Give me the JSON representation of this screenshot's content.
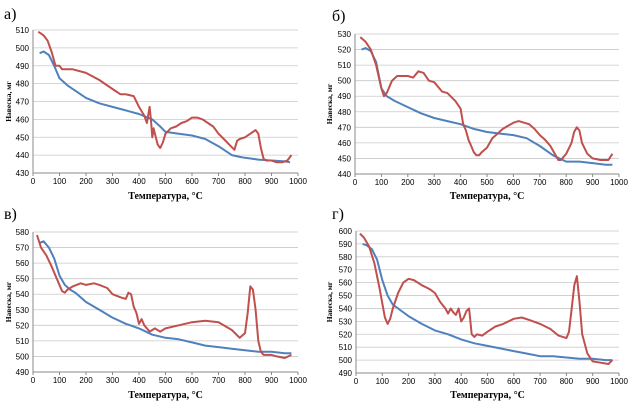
{
  "chart_data": [
    {
      "type": "line",
      "panel_label": "а)",
      "xlabel": "Температура, °С",
      "ylabel": "Навеска, мг",
      "xlim": [
        0,
        1000
      ],
      "ylim": [
        430,
        510
      ],
      "xticks": [
        0,
        100,
        200,
        300,
        400,
        500,
        600,
        700,
        800,
        900,
        1000
      ],
      "yticks": [
        430,
        440,
        450,
        460,
        470,
        480,
        490,
        500,
        510
      ],
      "grid": true,
      "series": [
        {
          "color": "#4f81bd",
          "x": [
            25,
            40,
            60,
            80,
            100,
            130,
            160,
            200,
            250,
            300,
            350,
            400,
            450,
            480,
            500,
            550,
            600,
            650,
            700,
            750,
            780,
            800,
            850,
            900,
            950,
            970
          ],
          "y": [
            497,
            498,
            496,
            490,
            483,
            479,
            476,
            472,
            469,
            467,
            465,
            463,
            460,
            456,
            453,
            452,
            451,
            449,
            445,
            440,
            439,
            438.5,
            437.5,
            437,
            436.5,
            436
          ]
        },
        {
          "color": "#c0504d",
          "x": [
            20,
            30,
            40,
            55,
            70,
            85,
            100,
            110,
            130,
            150,
            200,
            250,
            300,
            330,
            350,
            380,
            400,
            420,
            430,
            440,
            445,
            450,
            455,
            460,
            470,
            480,
            490,
            500,
            520,
            540,
            560,
            580,
            600,
            620,
            640,
            660,
            680,
            700,
            720,
            740,
            760,
            770,
            780,
            800,
            820,
            840,
            850,
            860,
            870,
            880,
            900,
            920,
            940,
            960,
            975
          ],
          "y": [
            509,
            508,
            507,
            504,
            498,
            490,
            490,
            488,
            488,
            488,
            486,
            482,
            477,
            474,
            474,
            473,
            467,
            462,
            458,
            467,
            460,
            450,
            455,
            452,
            446,
            444,
            447,
            452,
            455,
            456,
            458,
            459,
            461,
            461,
            460,
            458,
            456,
            452,
            449,
            446,
            443,
            448,
            449,
            450,
            452,
            454,
            452,
            444,
            438,
            437,
            437,
            436,
            436,
            437,
            440
          ]
        }
      ]
    },
    {
      "type": "line",
      "panel_label": "б)",
      "xlabel": "Температура, °С",
      "ylabel": "Навеска, мг",
      "xlim": [
        0,
        1000
      ],
      "ylim": [
        440,
        530
      ],
      "xticks": [
        0,
        100,
        200,
        300,
        400,
        500,
        600,
        700,
        800,
        900,
        1000
      ],
      "yticks": [
        440,
        450,
        460,
        470,
        480,
        490,
        500,
        510,
        520,
        530
      ],
      "grid": true,
      "series": [
        {
          "color": "#4f81bd",
          "x": [
            25,
            40,
            60,
            80,
            100,
            120,
            150,
            200,
            250,
            300,
            350,
            400,
            450,
            500,
            550,
            600,
            650,
            700,
            750,
            800,
            850,
            900,
            950,
            975
          ],
          "y": [
            520,
            521,
            519,
            512,
            495,
            490,
            487,
            483,
            479,
            476,
            474,
            472,
            469,
            467,
            466,
            465,
            463,
            458,
            452,
            448,
            448,
            447,
            446,
            446
          ]
        },
        {
          "color": "#c0504d",
          "x": [
            20,
            40,
            60,
            80,
            100,
            110,
            120,
            140,
            160,
            200,
            220,
            240,
            260,
            280,
            300,
            330,
            350,
            380,
            400,
            410,
            420,
            430,
            440,
            450,
            460,
            470,
            480,
            500,
            520,
            540,
            560,
            580,
            600,
            620,
            640,
            660,
            680,
            700,
            720,
            740,
            760,
            770,
            780,
            800,
            820,
            830,
            840,
            850,
            860,
            880,
            900,
            930,
            960,
            975
          ],
          "y": [
            528,
            525,
            520,
            510,
            495,
            490,
            492,
            500,
            503,
            503,
            502,
            506,
            505,
            500,
            499,
            493,
            492,
            487,
            482,
            472,
            468,
            462,
            458,
            454,
            452,
            452,
            454,
            457,
            463,
            466,
            469,
            471,
            473,
            474,
            473,
            472,
            469,
            465,
            462,
            458,
            452,
            449,
            449,
            453,
            460,
            467,
            470,
            468,
            460,
            453,
            450,
            449,
            449,
            453
          ]
        }
      ]
    },
    {
      "type": "line",
      "panel_label": "в)",
      "xlabel": "Температура, °С",
      "ylabel": "Навеска, мг",
      "xlim": [
        0,
        1000
      ],
      "ylim": [
        490,
        580
      ],
      "xticks": [
        0,
        100,
        200,
        300,
        400,
        500,
        600,
        700,
        800,
        900,
        1000
      ],
      "yticks": [
        490,
        500,
        510,
        520,
        530,
        540,
        550,
        560,
        570,
        580
      ],
      "grid": true,
      "series": [
        {
          "color": "#4f81bd",
          "x": [
            25,
            40,
            60,
            80,
            100,
            120,
            140,
            160,
            200,
            250,
            300,
            350,
            400,
            450,
            500,
            550,
            600,
            650,
            700,
            750,
            800,
            850,
            900,
            950,
            975
          ],
          "y": [
            573,
            574,
            570,
            563,
            552,
            546,
            543,
            541,
            535,
            530,
            525,
            521,
            518,
            514,
            512,
            511,
            509,
            507,
            506,
            505,
            504,
            503,
            503,
            502,
            502
          ]
        },
        {
          "color": "#c0504d",
          "x": [
            15,
            30,
            50,
            70,
            90,
            110,
            120,
            130,
            150,
            180,
            200,
            230,
            250,
            280,
            300,
            330,
            350,
            360,
            370,
            380,
            390,
            400,
            410,
            420,
            440,
            460,
            480,
            500,
            550,
            600,
            650,
            700,
            750,
            780,
            800,
            810,
            820,
            830,
            840,
            850,
            860,
            870,
            880,
            900,
            920,
            950,
            975
          ],
          "y": [
            578,
            570,
            565,
            558,
            550,
            542,
            541,
            543,
            545,
            547,
            546,
            547,
            546,
            544,
            540,
            538,
            537,
            541,
            540,
            532,
            528,
            521,
            524,
            520,
            516,
            518,
            516,
            518,
            520,
            522,
            523,
            522,
            517,
            512,
            515,
            528,
            545,
            543,
            530,
            510,
            503,
            501,
            501,
            501,
            500,
            499,
            501
          ]
        }
      ]
    },
    {
      "type": "line",
      "panel_label": "г)",
      "xlabel": "Температура, °С",
      "ylabel": "Навеска, мг",
      "xlim": [
        0,
        1000
      ],
      "ylim": [
        490,
        600
      ],
      "xticks": [
        0,
        100,
        200,
        300,
        400,
        500,
        600,
        700,
        800,
        900,
        1000
      ],
      "yticks": [
        490,
        500,
        510,
        520,
        530,
        540,
        550,
        560,
        570,
        580,
        590,
        600
      ],
      "grid": true,
      "series": [
        {
          "color": "#4f81bd",
          "x": [
            25,
            40,
            60,
            80,
            100,
            120,
            140,
            160,
            200,
            250,
            300,
            350,
            400,
            450,
            500,
            550,
            600,
            650,
            700,
            750,
            800,
            850,
            900,
            950,
            975
          ],
          "y": [
            590,
            589,
            586,
            578,
            562,
            550,
            543,
            540,
            534,
            528,
            523,
            520,
            516,
            513,
            511,
            509,
            507,
            505,
            503,
            503,
            502,
            501,
            501,
            500,
            500
          ]
        },
        {
          "color": "#c0504d",
          "x": [
            15,
            30,
            50,
            70,
            90,
            110,
            120,
            130,
            140,
            160,
            180,
            200,
            220,
            250,
            280,
            300,
            320,
            340,
            350,
            360,
            370,
            380,
            390,
            400,
            410,
            420,
            430,
            440,
            450,
            460,
            480,
            500,
            530,
            560,
            600,
            630,
            660,
            700,
            740,
            770,
            800,
            810,
            820,
            830,
            840,
            850,
            860,
            880,
            900,
            930,
            960,
            975
          ],
          "y": [
            598,
            595,
            588,
            575,
            555,
            533,
            528,
            532,
            540,
            552,
            560,
            563,
            562,
            558,
            555,
            552,
            545,
            540,
            536,
            540,
            537,
            535,
            540,
            530,
            533,
            538,
            540,
            520,
            518,
            520,
            519,
            522,
            526,
            528,
            532,
            533,
            531,
            528,
            524,
            519,
            517,
            522,
            540,
            558,
            565,
            545,
            520,
            505,
            499,
            498,
            497,
            500
          ]
        }
      ]
    }
  ]
}
